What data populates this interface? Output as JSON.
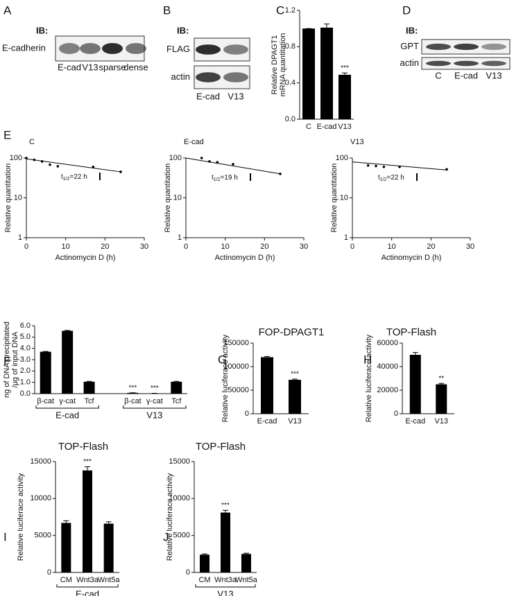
{
  "blots": [
    {
      "panel": "A",
      "ib": "IB:",
      "rows": [
        "E-cadherin"
      ],
      "lanes": [
        "E-cad",
        "V13",
        "sparse",
        "dense"
      ]
    },
    {
      "panel": "B",
      "ib": "IB:",
      "rows": [
        "FLAG",
        "actin"
      ],
      "lanes": [
        "E-cad",
        "V13"
      ]
    },
    {
      "panel": "D",
      "ib": "IB:",
      "rows": [
        "GPT",
        "actin"
      ],
      "lanes": [
        "C",
        "E-cad",
        "V13"
      ]
    }
  ],
  "chart_data": [
    {
      "type": "bar",
      "panel": "C",
      "y_label": [
        "Relative DPAGT1",
        "mRNA quantitation"
      ],
      "categories": [
        "C",
        "E-cad",
        "V13"
      ],
      "values": [
        1.0,
        1.01,
        0.49
      ],
      "errors": [
        0,
        0.04,
        0.02
      ],
      "annotations": [
        null,
        null,
        "***"
      ],
      "color": "#000000",
      "ylim": [
        0,
        1.2
      ],
      "yticks": [
        {
          "value": 0,
          "label": "0.0"
        },
        0.4,
        0.8,
        1.2
      ]
    },
    {
      "type": "decay",
      "panel": "E",
      "title": "C",
      "x_label": "Actinomycin D (h)",
      "y_label": [
        "Relative quantitation"
      ],
      "x": [
        0,
        2,
        4,
        6,
        8,
        17,
        24
      ],
      "y": [
        100,
        90,
        82,
        68,
        62,
        60,
        45
      ],
      "fit": {
        "x": [
          0,
          24
        ],
        "y": [
          95,
          45
        ]
      },
      "half_life": {
        "t": "t",
        "sub": "1/2",
        "text": "=22 h"
      },
      "xlim": [
        0,
        30
      ],
      "xticks": [
        0,
        10,
        20,
        30
      ],
      "ylim": [
        1,
        100
      ],
      "yticks": [
        1,
        10,
        100
      ],
      "log_y": true
    },
    {
      "type": "decay",
      "title": "E-cad",
      "x_label": "Actinomycin D (h)",
      "y_label": [
        "Relative quantitation"
      ],
      "x": [
        4,
        6,
        8,
        12,
        24
      ],
      "y": [
        100,
        82,
        78,
        70,
        40
      ],
      "fit": {
        "x": [
          0,
          24
        ],
        "y": [
          100,
          40
        ]
      },
      "half_life": {
        "t": "t",
        "sub": "1/2",
        "text": "=19 h"
      },
      "xlim": [
        0,
        30
      ],
      "xticks": [
        0,
        10,
        20,
        30
      ],
      "ylim": [
        1,
        100
      ],
      "yticks": [
        1,
        10,
        100
      ],
      "log_y": true
    },
    {
      "type": "decay",
      "title": "V13",
      "x_label": "Actinomycin D (h)",
      "y_label": [
        "Relative quantitation"
      ],
      "x": [
        4,
        6,
        8,
        12,
        24
      ],
      "y": [
        65,
        63,
        60,
        60,
        52
      ],
      "fit": {
        "x": [
          0,
          24
        ],
        "y": [
          80,
          50
        ]
      },
      "half_life": {
        "t": "t",
        "sub": "1/2",
        "text": "=22 h"
      },
      "xlim": [
        0,
        30
      ],
      "xticks": [
        0,
        10,
        20,
        30
      ],
      "ylim": [
        1,
        100
      ],
      "yticks": [
        1,
        10,
        100
      ],
      "log_y": true
    },
    {
      "type": "bar",
      "panel": "F",
      "y_label": [
        "ng of DNA precipitated",
        "/μg of input DNA"
      ],
      "categories": [
        "β-cat",
        "γ-cat",
        "Tcf",
        "β-cat",
        "γ-cat",
        "Tcf"
      ],
      "groups": [
        "E-cad",
        "V13"
      ],
      "values": [
        3.7,
        5.55,
        1.05,
        0.07,
        0.02,
        1.05
      ],
      "errors": [
        0.03,
        0.04,
        0.04,
        0.01,
        0.01,
        0.04
      ],
      "annotations": [
        null,
        null,
        null,
        "***",
        "***",
        null
      ],
      "color": "#000000",
      "ylim": [
        0,
        6
      ],
      "yticks": [
        {
          "value": 0,
          "label": "0.0"
        },
        {
          "value": 1,
          "label": "1.0"
        },
        {
          "value": 2,
          "label": "2.0"
        },
        {
          "value": 3,
          "label": "3.0"
        },
        {
          "value": 4,
          "label": "4.0"
        },
        {
          "value": 5,
          "label": "5.0"
        },
        {
          "value": 6,
          "label": "6.0"
        }
      ]
    },
    {
      "type": "bar",
      "panel": "G",
      "title": "FOP-DPAGT1",
      "y_label": [
        "Relative luciferace activity"
      ],
      "categories": [
        "E-cad",
        "V13"
      ],
      "values": [
        120000,
        72000
      ],
      "errors": [
        1500,
        1500
      ],
      "annotations": [
        null,
        "***"
      ],
      "color": "#000000",
      "ylim": [
        0,
        150000
      ],
      "yticks": [
        0,
        50000,
        100000,
        150000
      ]
    },
    {
      "type": "bar",
      "panel": "H",
      "title": "TOP-Flash",
      "y_label": [
        "Relative luciferace activity"
      ],
      "categories": [
        "E-cad",
        "V13"
      ],
      "values": [
        50000,
        25000
      ],
      "errors": [
        2000,
        700
      ],
      "annotations": [
        null,
        "**"
      ],
      "color": "#000000",
      "ylim": [
        0,
        60000
      ],
      "yticks": [
        0,
        20000,
        40000,
        60000
      ]
    },
    {
      "type": "bar",
      "panel": "I",
      "title": "TOP-Flash",
      "y_label": [
        "Relative luciferace activity"
      ],
      "categories": [
        "CM",
        "Wnt3a",
        "Wnt5a"
      ],
      "groups": [
        "E-cad"
      ],
      "values": [
        6700,
        13800,
        6600
      ],
      "errors": [
        300,
        500,
        250
      ],
      "annotations": [
        null,
        "***",
        null
      ],
      "color": "#000000",
      "ylim": [
        0,
        15000
      ],
      "yticks": [
        0,
        5000,
        10000,
        15000
      ]
    },
    {
      "type": "bar",
      "panel": "J",
      "title": "TOP-Flash",
      "y_label": [
        "Relative luciferace activity"
      ],
      "categories": [
        "CM",
        "Wnt3a",
        "Wnt5a"
      ],
      "groups": [
        "V13"
      ],
      "values": [
        2400,
        8100,
        2500
      ],
      "errors": [
        100,
        300,
        100
      ],
      "annotations": [
        null,
        "***",
        null
      ],
      "color": "#000000",
      "ylim": [
        0,
        15000
      ],
      "yticks": [
        0,
        5000,
        10000,
        15000
      ]
    }
  ]
}
